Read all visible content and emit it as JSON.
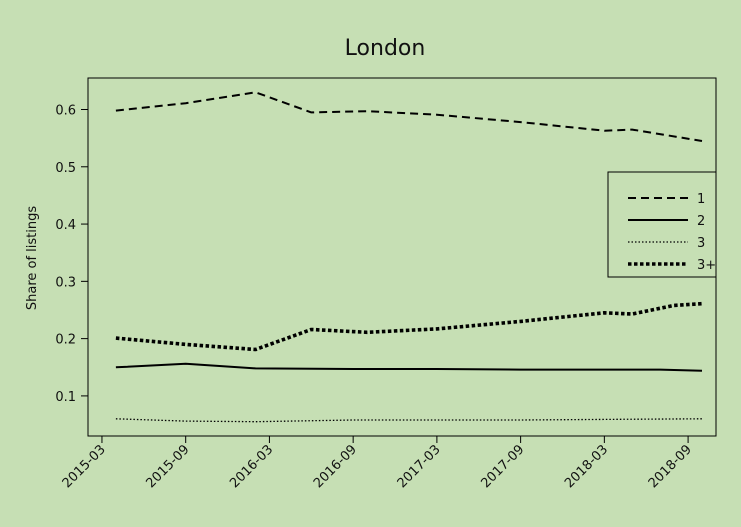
{
  "chart_data": {
    "type": "line",
    "title": "London",
    "xlabel": "",
    "ylabel": "Share of listings",
    "x_ticks": [
      "2015-03",
      "2015-09",
      "2016-03",
      "2016-09",
      "2017-03",
      "2017-09",
      "2018-03",
      "2018-09"
    ],
    "y_ticks": [
      "0.1",
      "0.2",
      "0.3",
      "0.4",
      "0.5",
      "0.6"
    ],
    "ylim": [
      0.03,
      0.655
    ],
    "xlim": [
      "2015-02",
      "2018-11"
    ],
    "grid": false,
    "legend_position": "right",
    "background_color": "#c6dfb4",
    "line_color": "#000000",
    "series": [
      {
        "name": "1",
        "style": "dashed",
        "points": [
          {
            "x": "2015-04",
            "y": 0.598
          },
          {
            "x": "2015-09",
            "y": 0.611
          },
          {
            "x": "2016-02",
            "y": 0.63
          },
          {
            "x": "2016-06",
            "y": 0.595
          },
          {
            "x": "2016-10",
            "y": 0.597
          },
          {
            "x": "2017-03",
            "y": 0.591
          },
          {
            "x": "2017-09",
            "y": 0.578
          },
          {
            "x": "2018-03",
            "y": 0.563
          },
          {
            "x": "2018-05",
            "y": 0.565
          },
          {
            "x": "2018-10",
            "y": 0.545
          }
        ]
      },
      {
        "name": "2",
        "style": "solid",
        "points": [
          {
            "x": "2015-04",
            "y": 0.15
          },
          {
            "x": "2015-09",
            "y": 0.156
          },
          {
            "x": "2016-02",
            "y": 0.148
          },
          {
            "x": "2016-09",
            "y": 0.147
          },
          {
            "x": "2017-03",
            "y": 0.147
          },
          {
            "x": "2017-09",
            "y": 0.146
          },
          {
            "x": "2018-03",
            "y": 0.146
          },
          {
            "x": "2018-07",
            "y": 0.146
          },
          {
            "x": "2018-10",
            "y": 0.144
          }
        ]
      },
      {
        "name": "3",
        "style": "dotted",
        "points": [
          {
            "x": "2015-04",
            "y": 0.06
          },
          {
            "x": "2015-09",
            "y": 0.056
          },
          {
            "x": "2016-02",
            "y": 0.055
          },
          {
            "x": "2016-09",
            "y": 0.058
          },
          {
            "x": "2017-03",
            "y": 0.058
          },
          {
            "x": "2017-09",
            "y": 0.058
          },
          {
            "x": "2018-03",
            "y": 0.059
          },
          {
            "x": "2018-10",
            "y": 0.06
          }
        ]
      },
      {
        "name": "3+",
        "style": "thick-dotted",
        "points": [
          {
            "x": "2015-04",
            "y": 0.201
          },
          {
            "x": "2015-09",
            "y": 0.19
          },
          {
            "x": "2016-02",
            "y": 0.181
          },
          {
            "x": "2016-06",
            "y": 0.216
          },
          {
            "x": "2016-10",
            "y": 0.211
          },
          {
            "x": "2017-03",
            "y": 0.217
          },
          {
            "x": "2017-09",
            "y": 0.23
          },
          {
            "x": "2018-03",
            "y": 0.245
          },
          {
            "x": "2018-05",
            "y": 0.243
          },
          {
            "x": "2018-08",
            "y": 0.258
          },
          {
            "x": "2018-10",
            "y": 0.261
          }
        ]
      }
    ]
  }
}
